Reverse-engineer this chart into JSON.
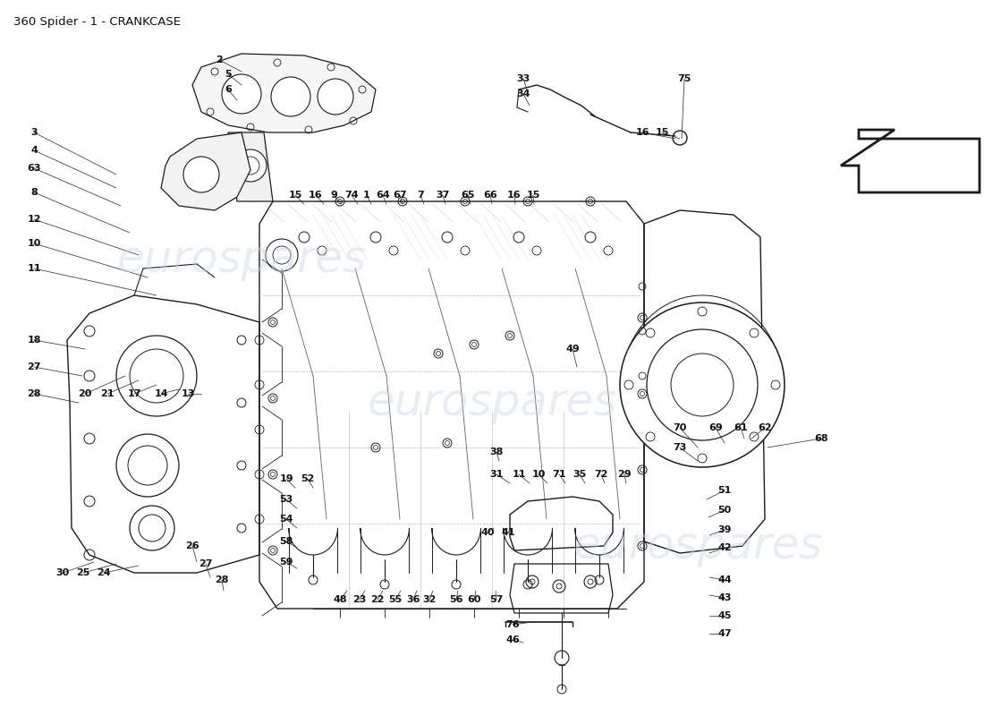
{
  "title": "360 Spider - 1 - CRANKCASE",
  "title_fontsize": 9.5,
  "background_color": "#ffffff",
  "watermark_text": "eurospares",
  "watermark_color": "#c8d4e8",
  "watermark_alpha": 0.45,
  "watermark_fontsize": 36,
  "fig_width": 11.0,
  "fig_height": 8.0,
  "lc": "#1a1a1a",
  "lw": 0.9
}
